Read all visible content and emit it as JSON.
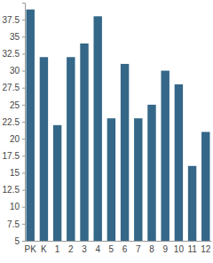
{
  "chart_data": {
    "type": "bar",
    "categories": [
      "PK",
      "K",
      "1",
      "2",
      "3",
      "4",
      "5",
      "6",
      "7",
      "8",
      "9",
      "10",
      "11",
      "12"
    ],
    "values": [
      39,
      32,
      22,
      32,
      34,
      38,
      23,
      31,
      23,
      25,
      30,
      28,
      16,
      21
    ],
    "color": "#346788",
    "ylim": [
      5,
      40
    ],
    "yticks": [
      5,
      7.5,
      10,
      12.5,
      15,
      17.5,
      20,
      22.5,
      25,
      27.5,
      30,
      32.5,
      35,
      37.5
    ],
    "grid": false
  }
}
